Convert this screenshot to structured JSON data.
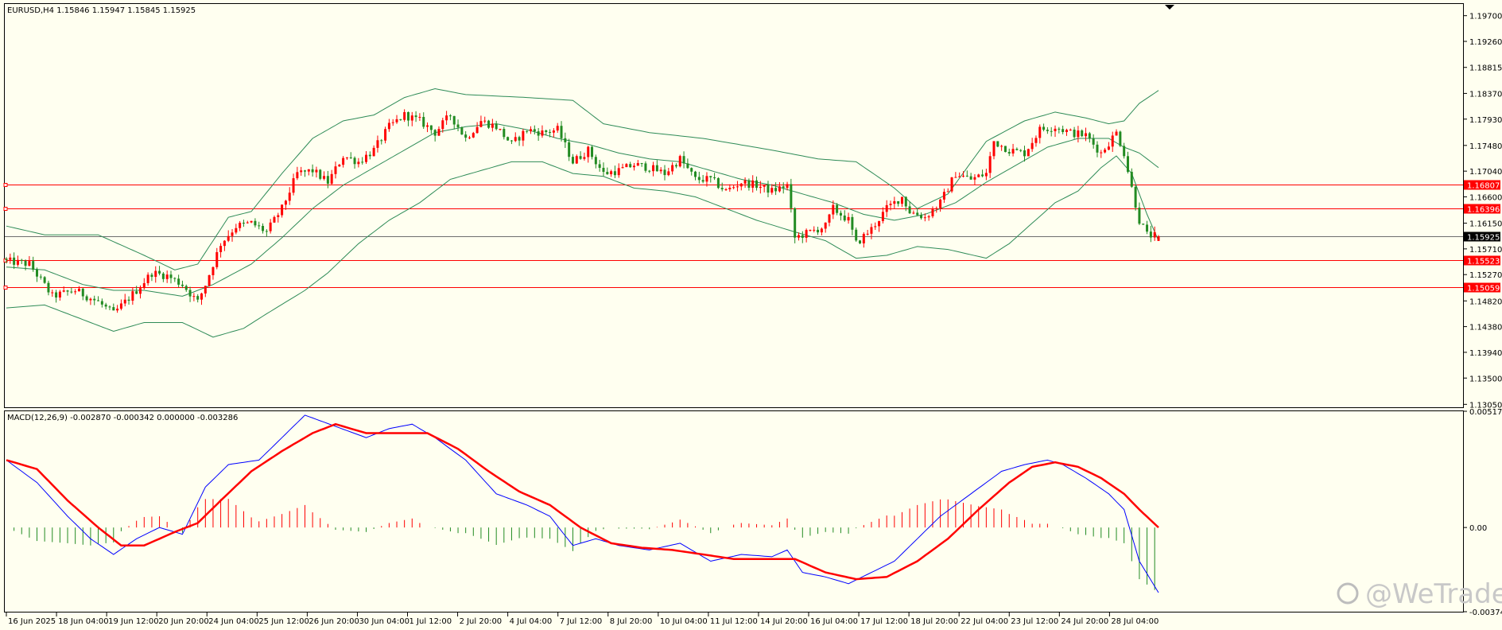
{
  "header": {
    "main_info": "EURUSD,H4  1.15846 1.15947 1.15845 1.15925",
    "macd_info": "MACD(12,26,9) -0.002870 -0.000342 0.000000 -0.003286"
  },
  "watermark": "@WeTrade",
  "colors": {
    "background": "#fffff0",
    "bull": "#ff0000",
    "bear": "#228b22",
    "band": "#2e8b57",
    "signal": "#ff0000",
    "macd_line": "#0000ff",
    "hline": "#ff0000",
    "current": "#000000"
  },
  "chart_data": [
    {
      "type": "candlestick",
      "symbol": "EURUSD",
      "timeframe": "H4",
      "ohlc_last": {
        "open": 1.15846,
        "high": 1.15947,
        "low": 1.15845,
        "close": 1.15925
      },
      "ylim": [
        1.13,
        1.199
      ],
      "y_ticks": [
        "1.19700",
        "1.19260",
        "1.18815",
        "1.18370",
        "1.17930",
        "1.17480",
        "1.17040",
        "1.16600",
        "1.16150",
        "1.15710",
        "1.15270",
        "1.14820",
        "1.14380",
        "1.13940",
        "1.13500",
        "1.13050"
      ],
      "x_ticks": [
        "16 Jun 2025",
        "18 Jun 04:00",
        "19 Jun 12:00",
        "20 Jun 20:00",
        "24 Jun 04:00",
        "25 Jun 12:00",
        "26 Jun 20:00",
        "30 Jun 04:00",
        "1 Jul 12:00",
        "2 Jul 20:00",
        "4 Jul 04:00",
        "7 Jul 12:00",
        "8 Jul 20:00",
        "10 Jul 04:00",
        "11 Jul 12:00",
        "14 Jul 20:00",
        "16 Jul 04:00",
        "17 Jul 12:00",
        "18 Jul 20:00",
        "22 Jul 04:00",
        "23 Jul 12:00",
        "24 Jul 20:00",
        "28 Jul 04:00"
      ],
      "price_levels": [
        {
          "label": "1.16807",
          "value": 1.16807
        },
        {
          "label": "1.16396",
          "value": 1.16396
        },
        {
          "label": "1.15523",
          "value": 1.15523
        },
        {
          "label": "1.15059",
          "value": 1.15059
        }
      ],
      "current_price": {
        "label": "1.15925",
        "value": 1.15925
      },
      "close_anchors": [
        [
          0,
          1.155
        ],
        [
          6,
          1.1545
        ],
        [
          12,
          1.149
        ],
        [
          18,
          1.15
        ],
        [
          24,
          1.148
        ],
        [
          28,
          1.146
        ],
        [
          34,
          1.15
        ],
        [
          38,
          1.153
        ],
        [
          42,
          1.1525
        ],
        [
          46,
          1.151
        ],
        [
          50,
          1.148
        ],
        [
          52,
          1.151
        ],
        [
          56,
          1.158
        ],
        [
          60,
          1.161
        ],
        [
          64,
          1.1615
        ],
        [
          68,
          1.16
        ],
        [
          72,
          1.164
        ],
        [
          76,
          1.17
        ],
        [
          80,
          1.1705
        ],
        [
          84,
          1.1685
        ],
        [
          88,
          1.173
        ],
        [
          92,
          1.172
        ],
        [
          96,
          1.174
        ],
        [
          100,
          1.178
        ],
        [
          104,
          1.18
        ],
        [
          108,
          1.179
        ],
        [
          112,
          1.177
        ],
        [
          116,
          1.18
        ],
        [
          120,
          1.176
        ],
        [
          124,
          1.179
        ],
        [
          128,
          1.178
        ],
        [
          132,
          1.175
        ],
        [
          136,
          1.1775
        ],
        [
          140,
          1.177
        ],
        [
          144,
          1.1775
        ],
        [
          148,
          1.172
        ],
        [
          152,
          1.174
        ],
        [
          156,
          1.17
        ],
        [
          160,
          1.1705
        ],
        [
          164,
          1.1715
        ],
        [
          168,
          1.171
        ],
        [
          172,
          1.17
        ],
        [
          176,
          1.1725
        ],
        [
          180,
          1.169
        ],
        [
          184,
          1.169
        ],
        [
          188,
          1.167
        ],
        [
          192,
          1.1685
        ],
        [
          196,
          1.168
        ],
        [
          200,
          1.167
        ],
        [
          204,
          1.168
        ],
        [
          206,
          1.159
        ],
        [
          210,
          1.16
        ],
        [
          214,
          1.161
        ],
        [
          216,
          1.164
        ],
        [
          220,
          1.162
        ],
        [
          222,
          1.158
        ],
        [
          226,
          1.1605
        ],
        [
          230,
          1.164
        ],
        [
          234,
          1.166
        ],
        [
          236,
          1.1635
        ],
        [
          240,
          1.1625
        ],
        [
          244,
          1.165
        ],
        [
          248,
          1.17
        ],
        [
          252,
          1.169
        ],
        [
          256,
          1.17
        ],
        [
          258,
          1.1755
        ],
        [
          262,
          1.174
        ],
        [
          266,
          1.1735
        ],
        [
          270,
          1.1775
        ],
        [
          274,
          1.178
        ],
        [
          278,
          1.177
        ],
        [
          282,
          1.1765
        ],
        [
          286,
          1.1735
        ],
        [
          290,
          1.177
        ],
        [
          292,
          1.1735
        ],
        [
          294,
          1.1675
        ],
        [
          296,
          1.162
        ],
        [
          298,
          1.1595
        ],
        [
          301,
          1.1592
        ]
      ],
      "bollinger_upper_anchors": [
        [
          0,
          1.161
        ],
        [
          10,
          1.1595
        ],
        [
          24,
          1.1595
        ],
        [
          36,
          1.156
        ],
        [
          44,
          1.1535
        ],
        [
          50,
          1.1545
        ],
        [
          58,
          1.1625
        ],
        [
          64,
          1.1635
        ],
        [
          72,
          1.17
        ],
        [
          80,
          1.176
        ],
        [
          88,
          1.179
        ],
        [
          96,
          1.18
        ],
        [
          104,
          1.183
        ],
        [
          112,
          1.1845
        ],
        [
          120,
          1.1835
        ],
        [
          136,
          1.183
        ],
        [
          148,
          1.1825
        ],
        [
          156,
          1.1785
        ],
        [
          168,
          1.177
        ],
        [
          182,
          1.176
        ],
        [
          200,
          1.174
        ],
        [
          212,
          1.1725
        ],
        [
          222,
          1.172
        ],
        [
          232,
          1.1675
        ],
        [
          238,
          1.164
        ],
        [
          246,
          1.1665
        ],
        [
          256,
          1.1755
        ],
        [
          266,
          1.179
        ],
        [
          274,
          1.1805
        ],
        [
          282,
          1.1795
        ],
        [
          288,
          1.1785
        ],
        [
          292,
          1.179
        ],
        [
          296,
          1.182
        ],
        [
          301,
          1.1842
        ]
      ],
      "bollinger_mid_anchors": [
        [
          0,
          1.154
        ],
        [
          10,
          1.1535
        ],
        [
          20,
          1.151
        ],
        [
          28,
          1.15
        ],
        [
          36,
          1.15
        ],
        [
          46,
          1.149
        ],
        [
          54,
          1.151
        ],
        [
          64,
          1.1545
        ],
        [
          72,
          1.159
        ],
        [
          80,
          1.164
        ],
        [
          88,
          1.168
        ],
        [
          96,
          1.171
        ],
        [
          104,
          1.174
        ],
        [
          112,
          1.177
        ],
        [
          120,
          1.178
        ],
        [
          128,
          1.1785
        ],
        [
          136,
          1.1775
        ],
        [
          144,
          1.176
        ],
        [
          152,
          1.175
        ],
        [
          160,
          1.1735
        ],
        [
          168,
          1.1725
        ],
        [
          176,
          1.172
        ],
        [
          184,
          1.1705
        ],
        [
          192,
          1.169
        ],
        [
          200,
          1.168
        ],
        [
          208,
          1.1665
        ],
        [
          216,
          1.165
        ],
        [
          224,
          1.163
        ],
        [
          232,
          1.162
        ],
        [
          240,
          1.163
        ],
        [
          248,
          1.165
        ],
        [
          256,
          1.1685
        ],
        [
          264,
          1.1715
        ],
        [
          272,
          1.1745
        ],
        [
          280,
          1.176
        ],
        [
          288,
          1.176
        ],
        [
          292,
          1.1745
        ],
        [
          296,
          1.1735
        ],
        [
          301,
          1.171
        ]
      ],
      "bollinger_lower_anchors": [
        [
          0,
          1.147
        ],
        [
          10,
          1.1475
        ],
        [
          20,
          1.145
        ],
        [
          28,
          1.143
        ],
        [
          36,
          1.1445
        ],
        [
          46,
          1.1445
        ],
        [
          54,
          1.142
        ],
        [
          62,
          1.1435
        ],
        [
          68,
          1.146
        ],
        [
          78,
          1.15
        ],
        [
          84,
          1.153
        ],
        [
          92,
          1.158
        ],
        [
          100,
          1.162
        ],
        [
          108,
          1.165
        ],
        [
          116,
          1.169
        ],
        [
          124,
          1.1705
        ],
        [
          132,
          1.172
        ],
        [
          140,
          1.172
        ],
        [
          148,
          1.17
        ],
        [
          156,
          1.1695
        ],
        [
          164,
          1.1675
        ],
        [
          172,
          1.167
        ],
        [
          180,
          1.166
        ],
        [
          188,
          1.164
        ],
        [
          196,
          1.162
        ],
        [
          206,
          1.16
        ],
        [
          214,
          1.1585
        ],
        [
          222,
          1.1555
        ],
        [
          230,
          1.156
        ],
        [
          238,
          1.1575
        ],
        [
          246,
          1.157
        ],
        [
          256,
          1.1555
        ],
        [
          262,
          1.158
        ],
        [
          268,
          1.1615
        ],
        [
          274,
          1.165
        ],
        [
          280,
          1.167
        ],
        [
          286,
          1.171
        ],
        [
          290,
          1.173
        ],
        [
          294,
          1.17
        ],
        [
          298,
          1.163
        ],
        [
          301,
          1.1585
        ]
      ]
    },
    {
      "type": "line",
      "title": "MACD(12,26,9)",
      "values_text": "-0.002870 -0.000342 0.000000 -0.003286",
      "ylim": [
        -0.003748,
        0.005174
      ],
      "y_ticks": [
        "0.005174",
        "0.00",
        "-0.003748"
      ],
      "macd_anchors": [
        [
          0,
          0.003
        ],
        [
          8,
          0.002
        ],
        [
          16,
          0.0005
        ],
        [
          22,
          -0.0005
        ],
        [
          28,
          -0.0012
        ],
        [
          34,
          -0.0005
        ],
        [
          40,
          0.0
        ],
        [
          46,
          -0.0003
        ],
        [
          52,
          0.0018
        ],
        [
          58,
          0.0028
        ],
        [
          66,
          0.003
        ],
        [
          72,
          0.004
        ],
        [
          78,
          0.005
        ],
        [
          86,
          0.0045
        ],
        [
          94,
          0.004
        ],
        [
          100,
          0.0044
        ],
        [
          106,
          0.0046
        ],
        [
          112,
          0.004
        ],
        [
          120,
          0.003
        ],
        [
          128,
          0.0015
        ],
        [
          136,
          0.001
        ],
        [
          142,
          0.0005
        ],
        [
          148,
          -0.0008
        ],
        [
          154,
          -0.0005
        ],
        [
          160,
          -0.0008
        ],
        [
          168,
          -0.001
        ],
        [
          176,
          -0.0007
        ],
        [
          184,
          -0.0015
        ],
        [
          192,
          -0.0012
        ],
        [
          200,
          -0.0013
        ],
        [
          204,
          -0.001
        ],
        [
          208,
          -0.002
        ],
        [
          214,
          -0.0022
        ],
        [
          220,
          -0.0025
        ],
        [
          226,
          -0.002
        ],
        [
          232,
          -0.0015
        ],
        [
          238,
          -0.0005
        ],
        [
          244,
          0.0005
        ],
        [
          252,
          0.0015
        ],
        [
          260,
          0.0025
        ],
        [
          266,
          0.0028
        ],
        [
          272,
          0.003
        ],
        [
          276,
          0.0028
        ],
        [
          282,
          0.0022
        ],
        [
          288,
          0.0015
        ],
        [
          292,
          0.0008
        ],
        [
          296,
          -0.0015
        ],
        [
          301,
          -0.0029
        ]
      ],
      "signal_anchors": [
        [
          0,
          0.003
        ],
        [
          8,
          0.0026
        ],
        [
          16,
          0.0012
        ],
        [
          24,
          0.0
        ],
        [
          30,
          -0.0008
        ],
        [
          36,
          -0.0008
        ],
        [
          44,
          -0.0002
        ],
        [
          50,
          0.0002
        ],
        [
          56,
          0.0012
        ],
        [
          64,
          0.0025
        ],
        [
          72,
          0.0034
        ],
        [
          80,
          0.0042
        ],
        [
          86,
          0.0046
        ],
        [
          94,
          0.0042
        ],
        [
          102,
          0.0042
        ],
        [
          110,
          0.0042
        ],
        [
          118,
          0.0035
        ],
        [
          126,
          0.0025
        ],
        [
          134,
          0.0016
        ],
        [
          142,
          0.001
        ],
        [
          150,
          0.0
        ],
        [
          158,
          -0.0007
        ],
        [
          166,
          -0.0009
        ],
        [
          174,
          -0.001
        ],
        [
          182,
          -0.0012
        ],
        [
          190,
          -0.0014
        ],
        [
          198,
          -0.0014
        ],
        [
          206,
          -0.0014
        ],
        [
          214,
          -0.002
        ],
        [
          222,
          -0.0023
        ],
        [
          230,
          -0.0022
        ],
        [
          238,
          -0.0015
        ],
        [
          246,
          -0.0005
        ],
        [
          254,
          0.0008
        ],
        [
          262,
          0.002
        ],
        [
          268,
          0.0027
        ],
        [
          274,
          0.0029
        ],
        [
          280,
          0.0027
        ],
        [
          286,
          0.0022
        ],
        [
          292,
          0.0015
        ],
        [
          296,
          0.0008
        ],
        [
          301,
          0.0
        ]
      ]
    }
  ]
}
